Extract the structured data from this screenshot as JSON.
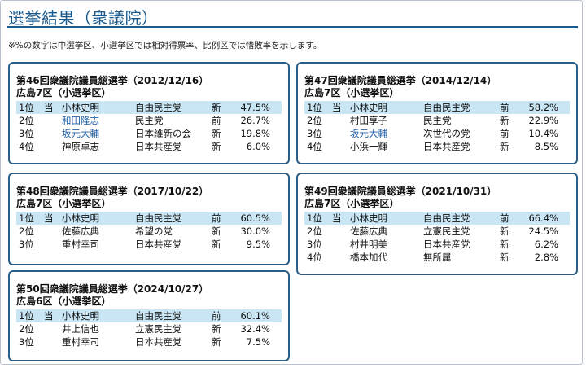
{
  "page": {
    "title": "選挙結果（衆議院）",
    "note": "※%の数字は中選挙区、小選挙区では相対得票率、比例区では惜敗率を示します。"
  },
  "elections": [
    {
      "heading": "第46回衆議院議員総選挙（2012/12/16）",
      "district": "広島7区（小選挙区）",
      "rows": [
        {
          "rank": "1位",
          "mark": "当",
          "name": "小林史明",
          "party": "自由民主党",
          "status": "新",
          "pct": "47.5%",
          "win": true,
          "link": false
        },
        {
          "rank": "2位",
          "mark": "",
          "name": "和田隆志",
          "party": "民主党",
          "status": "前",
          "pct": "26.7%",
          "win": false,
          "link": true
        },
        {
          "rank": "3位",
          "mark": "",
          "name": "坂元大輔",
          "party": "日本維新の会",
          "status": "新",
          "pct": "19.8%",
          "win": false,
          "link": true
        },
        {
          "rank": "4位",
          "mark": "",
          "name": "神原卓志",
          "party": "日本共産党",
          "status": "新",
          "pct": "6.0%",
          "win": false,
          "link": false
        }
      ]
    },
    {
      "heading": "第47回衆議院議員総選挙（2014/12/14）",
      "district": "広島7区（小選挙区）",
      "rows": [
        {
          "rank": "1位",
          "mark": "当",
          "name": "小林史明",
          "party": "自由民主党",
          "status": "前",
          "pct": "58.2%",
          "win": true,
          "link": false
        },
        {
          "rank": "2位",
          "mark": "",
          "name": "村田享子",
          "party": "民主党",
          "status": "新",
          "pct": "22.9%",
          "win": false,
          "link": false
        },
        {
          "rank": "3位",
          "mark": "",
          "name": "坂元大輔",
          "party": "次世代の党",
          "status": "前",
          "pct": "10.4%",
          "win": false,
          "link": true
        },
        {
          "rank": "4位",
          "mark": "",
          "name": "小浜一輝",
          "party": "日本共産党",
          "status": "新",
          "pct": "8.5%",
          "win": false,
          "link": false
        }
      ]
    },
    {
      "heading": "第48回衆議院議員総選挙（2017/10/22）",
      "district": "広島7区（小選挙区）",
      "rows": [
        {
          "rank": "1位",
          "mark": "当",
          "name": "小林史明",
          "party": "自由民主党",
          "status": "前",
          "pct": "60.5%",
          "win": true,
          "link": false
        },
        {
          "rank": "2位",
          "mark": "",
          "name": "佐藤広典",
          "party": "希望の党",
          "status": "新",
          "pct": "30.0%",
          "win": false,
          "link": false
        },
        {
          "rank": "3位",
          "mark": "",
          "name": "重村幸司",
          "party": "日本共産党",
          "status": "新",
          "pct": "9.5%",
          "win": false,
          "link": false
        }
      ]
    },
    {
      "heading": "第49回衆議院議員総選挙（2021/10/31）",
      "district": "広島7区（小選挙区）",
      "rows": [
        {
          "rank": "1位",
          "mark": "当",
          "name": "小林史明",
          "party": "自由民主党",
          "status": "前",
          "pct": "66.4%",
          "win": true,
          "link": false
        },
        {
          "rank": "2位",
          "mark": "",
          "name": "佐藤広典",
          "party": "立憲民主党",
          "status": "新",
          "pct": "24.5%",
          "win": false,
          "link": false
        },
        {
          "rank": "3位",
          "mark": "",
          "name": "村井明美",
          "party": "日本共産党",
          "status": "新",
          "pct": "6.2%",
          "win": false,
          "link": false
        },
        {
          "rank": "4位",
          "mark": "",
          "name": "橋本加代",
          "party": "無所属",
          "status": "新",
          "pct": "2.8%",
          "win": false,
          "link": false
        }
      ]
    },
    {
      "heading": "第50回衆議院議員総選挙（2024/10/27）",
      "district": "広島6区（小選挙区）",
      "rows": [
        {
          "rank": "1位",
          "mark": "当",
          "name": "小林史明",
          "party": "自由民主党",
          "status": "前",
          "pct": "60.1%",
          "win": true,
          "link": false
        },
        {
          "rank": "2位",
          "mark": "",
          "name": "井上信也",
          "party": "立憲民主党",
          "status": "新",
          "pct": "32.4%",
          "win": false,
          "link": false
        },
        {
          "rank": "3位",
          "mark": "",
          "name": "重村幸司",
          "party": "日本共産党",
          "status": "新",
          "pct": "7.5%",
          "win": false,
          "link": false
        }
      ]
    }
  ]
}
